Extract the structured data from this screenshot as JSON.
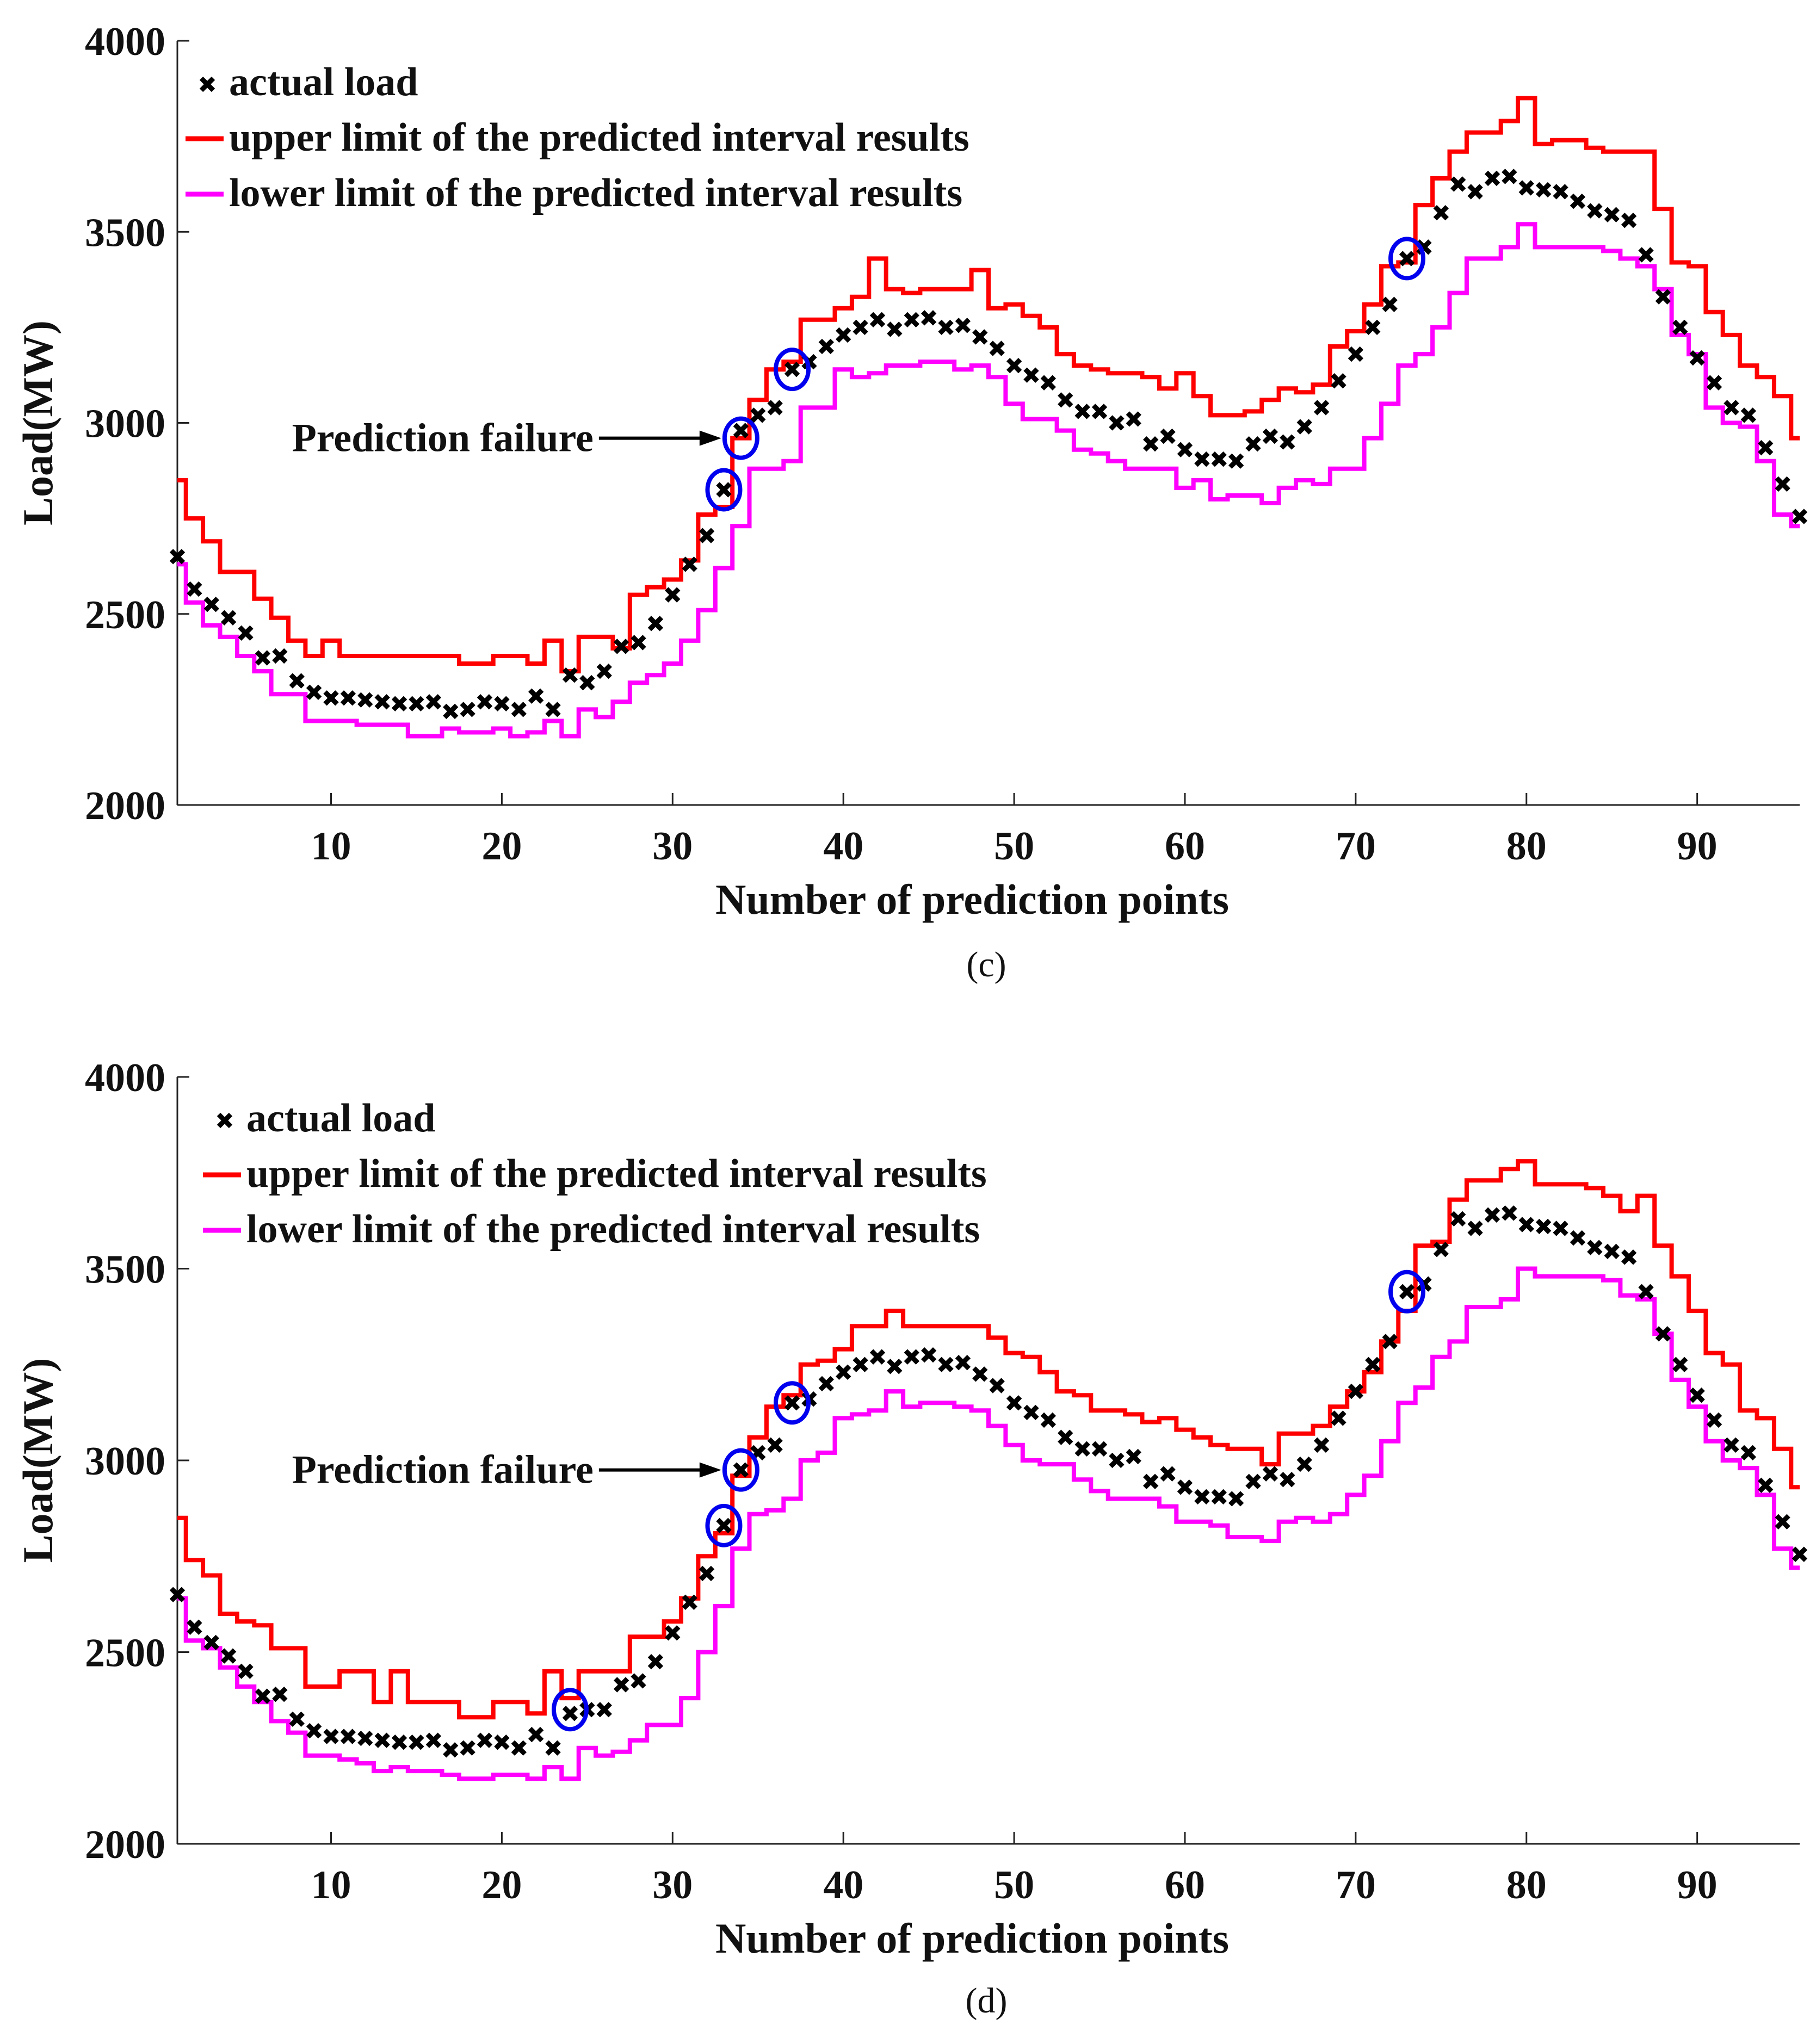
{
  "colors": {
    "actual": "#000000",
    "upper": "#ff0000",
    "lower": "#ff00ff",
    "failure_marker": "#0000ee"
  },
  "chart_data": [
    {
      "type": "line",
      "panel": "(c)",
      "caption": "(c)",
      "xlabel": "Number of prediction points",
      "ylabel": "Load(MW)",
      "xlim": [
        1,
        96
      ],
      "ylim": [
        2000,
        4000
      ],
      "xticks": [
        10,
        20,
        30,
        40,
        50,
        60,
        70,
        80,
        90
      ],
      "yticks": [
        2000,
        2500,
        3000,
        3500,
        4000
      ],
      "legend": [
        "actual load",
        "upper limit of the predicted interval results",
        "lower limit of the predicted interval results"
      ],
      "legend_position": "top-left",
      "annotation": {
        "text": "Prediction failure",
        "points_to_x": 34,
        "points_to_y": 2960
      },
      "failure_points": [
        {
          "x": 33,
          "y": 2825
        },
        {
          "x": 34,
          "y": 2960
        },
        {
          "x": 37,
          "y": 3140
        },
        {
          "x": 73,
          "y": 3430
        }
      ],
      "x": [
        1,
        2,
        3,
        4,
        5,
        6,
        7,
        8,
        9,
        10,
        11,
        12,
        13,
        14,
        15,
        16,
        17,
        18,
        19,
        20,
        21,
        22,
        23,
        24,
        25,
        26,
        27,
        28,
        29,
        30,
        31,
        32,
        33,
        34,
        35,
        36,
        37,
        38,
        39,
        40,
        41,
        42,
        43,
        44,
        45,
        46,
        47,
        48,
        49,
        50,
        51,
        52,
        53,
        54,
        55,
        56,
        57,
        58,
        59,
        60,
        61,
        62,
        63,
        64,
        65,
        66,
        67,
        68,
        69,
        70,
        71,
        72,
        73,
        74,
        75,
        76,
        77,
        78,
        79,
        80,
        81,
        82,
        83,
        84,
        85,
        86,
        87,
        88,
        89,
        90,
        91,
        92,
        93,
        94,
        95,
        96
      ],
      "series": [
        {
          "name": "actual load",
          "style": "markers",
          "values": [
            2650,
            2565,
            2525,
            2490,
            2450,
            2385,
            2390,
            2325,
            2295,
            2280,
            2280,
            2275,
            2270,
            2265,
            2265,
            2270,
            2245,
            2250,
            2270,
            2265,
            2250,
            2285,
            2250,
            2340,
            2320,
            2350,
            2415,
            2425,
            2475,
            2550,
            2630,
            2705,
            2825,
            2980,
            3020,
            3040,
            3140,
            3160,
            3200,
            3230,
            3250,
            3270,
            3245,
            3270,
            3275,
            3250,
            3255,
            3225,
            3195,
            3150,
            3125,
            3105,
            3060,
            3030,
            3030,
            3000,
            3010,
            2945,
            2965,
            2930,
            2905,
            2905,
            2900,
            2945,
            2965,
            2950,
            2990,
            3040,
            3110,
            3180,
            3250,
            3310,
            3430,
            3460,
            3550,
            3625,
            3605,
            3640,
            3645,
            3615,
            3610,
            3605,
            3580,
            3555,
            3545,
            3530,
            3440,
            3330,
            3250,
            3170,
            3105,
            3040,
            3020,
            2935,
            2840,
            2755
          ]
        },
        {
          "name": "upper limit of the predicted interval results",
          "style": "step",
          "values": [
            2850,
            2750,
            2690,
            2610,
            2610,
            2540,
            2490,
            2430,
            2390,
            2430,
            2390,
            2390,
            2390,
            2390,
            2390,
            2390,
            2390,
            2370,
            2370,
            2390,
            2390,
            2370,
            2430,
            2350,
            2440,
            2440,
            2410,
            2550,
            2570,
            2590,
            2640,
            2760,
            2780,
            2960,
            3060,
            3140,
            3160,
            3270,
            3270,
            3300,
            3330,
            3430,
            3350,
            3340,
            3350,
            3350,
            3350,
            3400,
            3300,
            3310,
            3280,
            3250,
            3180,
            3150,
            3140,
            3130,
            3130,
            3120,
            3090,
            3130,
            3070,
            3020,
            3020,
            3030,
            3060,
            3090,
            3080,
            3100,
            3200,
            3240,
            3310,
            3410,
            3420,
            3570,
            3640,
            3710,
            3760,
            3760,
            3790,
            3850,
            3730,
            3740,
            3740,
            3720,
            3710,
            3710,
            3710,
            3560,
            3420,
            3410,
            3290,
            3230,
            3150,
            3120,
            3070,
            2960
          ]
        },
        {
          "name": "lower limit of the predicted interval results",
          "style": "step",
          "values": [
            2630,
            2530,
            2470,
            2440,
            2390,
            2350,
            2290,
            2290,
            2220,
            2220,
            2220,
            2210,
            2210,
            2210,
            2180,
            2180,
            2200,
            2190,
            2190,
            2200,
            2180,
            2190,
            2220,
            2180,
            2250,
            2230,
            2270,
            2320,
            2340,
            2370,
            2430,
            2510,
            2620,
            2730,
            2880,
            2880,
            2900,
            3040,
            3040,
            3140,
            3120,
            3130,
            3150,
            3150,
            3160,
            3160,
            3140,
            3150,
            3120,
            3050,
            3010,
            3010,
            2980,
            2930,
            2920,
            2900,
            2880,
            2880,
            2880,
            2830,
            2850,
            2800,
            2810,
            2810,
            2790,
            2830,
            2850,
            2840,
            2880,
            2880,
            2960,
            3050,
            3150,
            3180,
            3250,
            3340,
            3430,
            3430,
            3460,
            3520,
            3460,
            3460,
            3460,
            3460,
            3450,
            3430,
            3410,
            3350,
            3230,
            3180,
            3040,
            3000,
            2990,
            2900,
            2760,
            2730
          ]
        }
      ]
    },
    {
      "type": "line",
      "panel": "(d)",
      "caption": "(d)",
      "xlabel": "Number of prediction points",
      "ylabel": "Load(MW)",
      "xlim": [
        1,
        96
      ],
      "ylim": [
        2000,
        4000
      ],
      "xticks": [
        10,
        20,
        30,
        40,
        50,
        60,
        70,
        80,
        90
      ],
      "yticks": [
        2000,
        2500,
        3000,
        3500,
        4000
      ],
      "legend": [
        "actual load",
        "upper limit of the predicted interval results",
        "lower limit of the predicted interval results"
      ],
      "legend_position": "top-left",
      "annotation": {
        "text": "Prediction failure",
        "points_to_x": 34,
        "points_to_y": 2975
      },
      "failure_points": [
        {
          "x": 24,
          "y": 2350
        },
        {
          "x": 33,
          "y": 2830
        },
        {
          "x": 34,
          "y": 2975
        },
        {
          "x": 37,
          "y": 3150
        },
        {
          "x": 73,
          "y": 3440
        }
      ],
      "x": [
        1,
        2,
        3,
        4,
        5,
        6,
        7,
        8,
        9,
        10,
        11,
        12,
        13,
        14,
        15,
        16,
        17,
        18,
        19,
        20,
        21,
        22,
        23,
        24,
        25,
        26,
        27,
        28,
        29,
        30,
        31,
        32,
        33,
        34,
        35,
        36,
        37,
        38,
        39,
        40,
        41,
        42,
        43,
        44,
        45,
        46,
        47,
        48,
        49,
        50,
        51,
        52,
        53,
        54,
        55,
        56,
        57,
        58,
        59,
        60,
        61,
        62,
        63,
        64,
        65,
        66,
        67,
        68,
        69,
        70,
        71,
        72,
        73,
        74,
        75,
        76,
        77,
        78,
        79,
        80,
        81,
        82,
        83,
        84,
        85,
        86,
        87,
        88,
        89,
        90,
        91,
        92,
        93,
        94,
        95,
        96
      ],
      "series": [
        {
          "name": "actual load",
          "style": "markers",
          "values": [
            2650,
            2565,
            2525,
            2490,
            2450,
            2385,
            2390,
            2325,
            2295,
            2280,
            2280,
            2275,
            2270,
            2265,
            2265,
            2270,
            2245,
            2250,
            2270,
            2265,
            2250,
            2285,
            2250,
            2340,
            2350,
            2350,
            2415,
            2425,
            2475,
            2550,
            2630,
            2705,
            2830,
            2975,
            3020,
            3040,
            3150,
            3160,
            3200,
            3230,
            3250,
            3270,
            3245,
            3270,
            3275,
            3250,
            3255,
            3225,
            3195,
            3150,
            3125,
            3105,
            3060,
            3030,
            3030,
            3000,
            3010,
            2945,
            2965,
            2930,
            2905,
            2905,
            2900,
            2945,
            2965,
            2950,
            2990,
            3040,
            3110,
            3180,
            3250,
            3310,
            3440,
            3460,
            3550,
            3630,
            3605,
            3640,
            3645,
            3615,
            3610,
            3605,
            3580,
            3555,
            3545,
            3530,
            3440,
            3330,
            3250,
            3170,
            3105,
            3040,
            3020,
            2935,
            2840,
            2755
          ]
        },
        {
          "name": "upper limit of the predicted interval results",
          "style": "step",
          "values": [
            2850,
            2740,
            2700,
            2600,
            2580,
            2570,
            2510,
            2510,
            2410,
            2410,
            2450,
            2450,
            2370,
            2450,
            2370,
            2370,
            2370,
            2330,
            2330,
            2370,
            2370,
            2340,
            2450,
            2380,
            2450,
            2450,
            2450,
            2540,
            2540,
            2580,
            2640,
            2750,
            2810,
            2960,
            3060,
            3140,
            3170,
            3250,
            3260,
            3290,
            3350,
            3350,
            3390,
            3350,
            3350,
            3350,
            3350,
            3350,
            3320,
            3280,
            3270,
            3230,
            3180,
            3170,
            3130,
            3130,
            3120,
            3100,
            3110,
            3080,
            3060,
            3040,
            3030,
            3030,
            2990,
            3070,
            3070,
            3090,
            3140,
            3180,
            3230,
            3310,
            3390,
            3560,
            3570,
            3680,
            3730,
            3730,
            3760,
            3780,
            3720,
            3720,
            3720,
            3710,
            3690,
            3650,
            3690,
            3560,
            3480,
            3390,
            3280,
            3250,
            3130,
            3110,
            3030,
            2930
          ]
        },
        {
          "name": "lower limit of the predicted interval results",
          "style": "step",
          "values": [
            2640,
            2530,
            2510,
            2460,
            2410,
            2370,
            2320,
            2290,
            2230,
            2230,
            2220,
            2210,
            2190,
            2200,
            2190,
            2190,
            2180,
            2170,
            2170,
            2180,
            2180,
            2170,
            2200,
            2170,
            2250,
            2230,
            2240,
            2270,
            2310,
            2310,
            2380,
            2500,
            2620,
            2770,
            2860,
            2870,
            2900,
            3000,
            3020,
            3110,
            3120,
            3130,
            3180,
            3140,
            3150,
            3150,
            3140,
            3130,
            3090,
            3040,
            3000,
            2990,
            2990,
            2950,
            2920,
            2900,
            2900,
            2900,
            2880,
            2840,
            2840,
            2830,
            2800,
            2800,
            2790,
            2840,
            2850,
            2840,
            2860,
            2910,
            2960,
            3050,
            3150,
            3190,
            3270,
            3310,
            3400,
            3400,
            3420,
            3500,
            3480,
            3480,
            3480,
            3480,
            3470,
            3430,
            3420,
            3330,
            3210,
            3140,
            3050,
            3000,
            2980,
            2910,
            2770,
            2720
          ]
        }
      ]
    }
  ]
}
